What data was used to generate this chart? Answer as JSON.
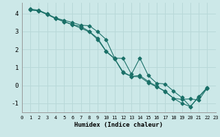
{
  "xlabel": "Humidex (Indice chaleur)",
  "bg_color": "#cce8e8",
  "grid_color": "#b8d8d8",
  "line_color": "#1a7068",
  "xlim": [
    0,
    23
  ],
  "ylim": [
    -1.5,
    4.6
  ],
  "xticks": [
    0,
    1,
    2,
    3,
    4,
    5,
    6,
    7,
    8,
    9,
    10,
    11,
    12,
    13,
    14,
    15,
    16,
    17,
    18,
    19,
    20,
    21,
    22,
    23
  ],
  "yticks": [
    -1,
    0,
    1,
    2,
    3,
    4
  ],
  "line1_x": [
    1,
    2,
    3,
    4,
    5,
    6,
    7,
    8,
    9,
    10,
    11,
    12,
    13,
    14,
    15,
    16,
    17,
    18,
    19,
    20,
    21,
    22
  ],
  "line1_y": [
    4.2,
    4.15,
    3.95,
    3.72,
    3.55,
    3.38,
    3.18,
    2.98,
    2.55,
    1.88,
    1.48,
    0.7,
    0.5,
    0.48,
    0.15,
    -0.08,
    -0.32,
    -0.72,
    -1.0,
    -1.18,
    -0.65,
    -0.15
  ],
  "line2_x": [
    1,
    2,
    3,
    4,
    5,
    6,
    7,
    8,
    9,
    10,
    11,
    12,
    13,
    14,
    15,
    16,
    17,
    18,
    19,
    20,
    21,
    22
  ],
  "line2_y": [
    4.25,
    4.18,
    3.98,
    3.75,
    3.62,
    3.5,
    3.35,
    3.32,
    2.98,
    2.55,
    1.52,
    1.5,
    0.62,
    1.52,
    0.55,
    0.12,
    0.08,
    -0.32,
    -0.68,
    -1.18,
    -0.62,
    -0.12
  ],
  "line3_x": [
    1,
    2,
    3,
    4,
    5,
    6,
    7,
    8,
    9,
    10,
    11,
    12,
    13,
    14,
    15,
    16,
    17,
    18,
    19,
    20,
    21,
    22
  ],
  "line3_y": [
    4.2,
    4.15,
    3.95,
    3.72,
    3.55,
    3.38,
    3.28,
    3.0,
    2.62,
    1.9,
    1.5,
    0.75,
    0.5,
    0.55,
    0.22,
    -0.05,
    -0.35,
    -0.72,
    -0.78,
    -0.75,
    -0.82,
    -0.15
  ]
}
